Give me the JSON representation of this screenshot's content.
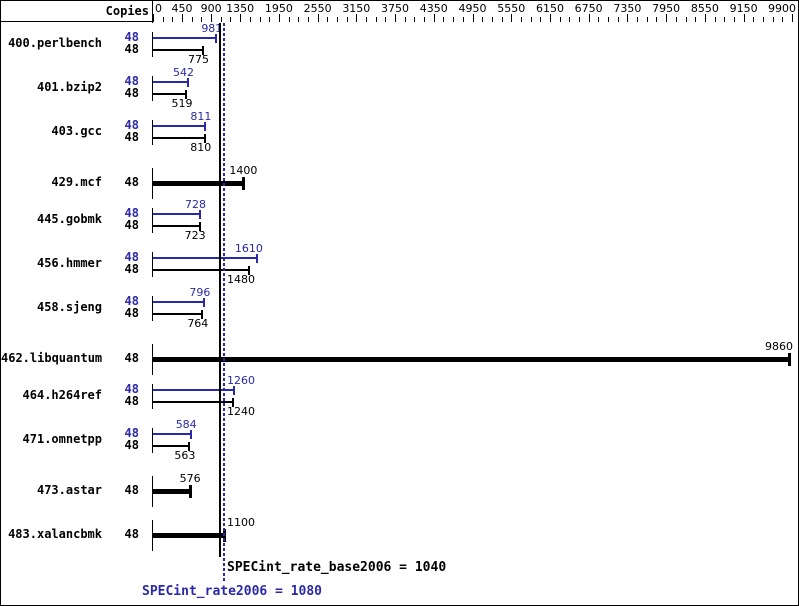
{
  "header": {
    "copies_label": "Copies"
  },
  "chart_data": {
    "type": "bar",
    "orientation": "horizontal",
    "x_axis": {
      "min": 0,
      "max": 9900,
      "minor_tick": 150,
      "labels": [
        0,
        450,
        900,
        1350,
        1950,
        2550,
        3150,
        3750,
        4350,
        4950,
        5550,
        6150,
        6750,
        7350,
        7950,
        8550,
        9150,
        9900
      ]
    },
    "series_note": "blue bar = peak (SPECint_rate2006), black bar = base; single bold bar = base/peak identical",
    "benchmarks": [
      {
        "name": "400.perlbench",
        "copies": 48,
        "peak": 981,
        "base": 775,
        "single": false
      },
      {
        "name": "401.bzip2",
        "copies": 48,
        "peak": 542,
        "base": 519,
        "single": false
      },
      {
        "name": "403.gcc",
        "copies": 48,
        "peak": 811,
        "base": 810,
        "single": false
      },
      {
        "name": "429.mcf",
        "copies": 48,
        "peak": null,
        "base": 1400,
        "single": true
      },
      {
        "name": "445.gobmk",
        "copies": 48,
        "peak": 728,
        "base": 723,
        "single": false
      },
      {
        "name": "456.hmmer",
        "copies": 48,
        "peak": 1610,
        "base": 1480,
        "single": false
      },
      {
        "name": "458.sjeng",
        "copies": 48,
        "peak": 796,
        "base": 764,
        "single": false
      },
      {
        "name": "462.libquantum",
        "copies": 48,
        "peak": null,
        "base": 9860,
        "single": true
      },
      {
        "name": "464.h264ref",
        "copies": 48,
        "peak": 1260,
        "base": 1240,
        "single": false
      },
      {
        "name": "471.omnetpp",
        "copies": 48,
        "peak": 584,
        "base": 563,
        "single": false
      },
      {
        "name": "473.astar",
        "copies": 48,
        "peak": null,
        "base": 576,
        "single": true
      },
      {
        "name": "483.xalancbmk",
        "copies": 48,
        "peak": null,
        "base": 1100,
        "single": true
      }
    ],
    "summary": {
      "base_text": "SPECint_rate_base2006 = 1040",
      "base_value": 1040,
      "peak_text": "SPECint_rate2006 = 1080",
      "peak_value": 1080
    },
    "colors": {
      "peak": "#2a2aa8",
      "base": "#000000"
    }
  }
}
